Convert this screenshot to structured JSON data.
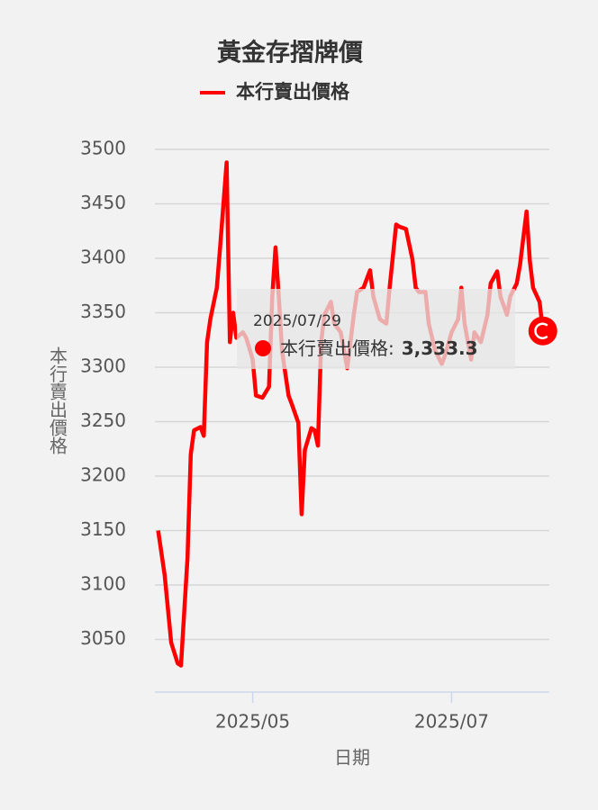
{
  "chart_data": {
    "type": "line",
    "title": "黃金存摺牌價",
    "x_label": "日期",
    "y_label": "本行賣出價格",
    "x": [
      "2025/04/02",
      "2025/04/04",
      "2025/04/06",
      "2025/04/08",
      "2025/04/09",
      "2025/04/11",
      "2025/04/12",
      "2025/04/13",
      "2025/04/15",
      "2025/04/16",
      "2025/04/17",
      "2025/04/18",
      "2025/04/20",
      "2025/04/21",
      "2025/04/23",
      "2025/04/24",
      "2025/04/25",
      "2025/04/26",
      "2025/04/28",
      "2025/04/29",
      "2025/05/01",
      "2025/05/02",
      "2025/05/04",
      "2025/05/06",
      "2025/05/07",
      "2025/05/08",
      "2025/05/09",
      "2025/05/10",
      "2025/05/12",
      "2025/05/13",
      "2025/05/15",
      "2025/05/16",
      "2025/05/17",
      "2025/05/19",
      "2025/05/20",
      "2025/05/21",
      "2025/05/22",
      "2025/05/23",
      "2025/05/25",
      "2025/05/26",
      "2025/05/28",
      "2025/05/30",
      "2025/06/01",
      "2025/06/02",
      "2025/06/04",
      "2025/06/06",
      "2025/06/07",
      "2025/06/09",
      "2025/06/11",
      "2025/06/12",
      "2025/06/14",
      "2025/06/15",
      "2025/06/17",
      "2025/06/19",
      "2025/06/20",
      "2025/06/21",
      "2025/06/23",
      "2025/06/24",
      "2025/06/26",
      "2025/06/28",
      "2025/06/29",
      "2025/07/01",
      "2025/07/03",
      "2025/07/04",
      "2025/07/05",
      "2025/07/07",
      "2025/07/08",
      "2025/07/10",
      "2025/07/12",
      "2025/07/13",
      "2025/07/15",
      "2025/07/16",
      "2025/07/18",
      "2025/07/19",
      "2025/07/21",
      "2025/07/22",
      "2025/07/24",
      "2025/07/25",
      "2025/07/26",
      "2025/07/28",
      "2025/07/29"
    ],
    "series": [
      {
        "name": "本行賣出價格",
        "color": "#ff0000",
        "values": [
          3150,
          3109,
          3047,
          3028,
          3026,
          3125,
          3220,
          3242,
          3245,
          3237,
          3323,
          3344,
          3373,
          3410,
          3488,
          3323,
          3350,
          3327,
          3332,
          3327,
          3307,
          3274,
          3272,
          3282,
          3365,
          3410,
          3365,
          3315,
          3274,
          3266,
          3249,
          3165,
          3224,
          3244,
          3242,
          3228,
          3323,
          3348,
          3360,
          3340,
          3332,
          3299,
          3348,
          3369,
          3373,
          3389,
          3365,
          3344,
          3340,
          3373,
          3431,
          3429,
          3427,
          3399,
          3373,
          3369,
          3369,
          3340,
          3315,
          3303,
          3311,
          3332,
          3344,
          3373,
          3340,
          3307,
          3332,
          3323,
          3348,
          3377,
          3388,
          3365,
          3348,
          3365,
          3377,
          3394,
          3443,
          3398,
          3373,
          3360,
          3333.3
        ]
      }
    ],
    "xlim": [
      "2025/04/01",
      "2025/07/31"
    ],
    "xticks": [
      {
        "value": "2025/05/01",
        "label": "2025/05"
      },
      {
        "value": "2025/07/01",
        "label": "2025/07"
      }
    ],
    "ylim": [
      3000,
      3500
    ],
    "yticks": [
      3050,
      3100,
      3150,
      3200,
      3250,
      3300,
      3350,
      3400,
      3450,
      3500
    ],
    "grid": true,
    "tooltip": {
      "label": "本行賣出價格:",
      "value_label": "3,333.3"
    }
  }
}
